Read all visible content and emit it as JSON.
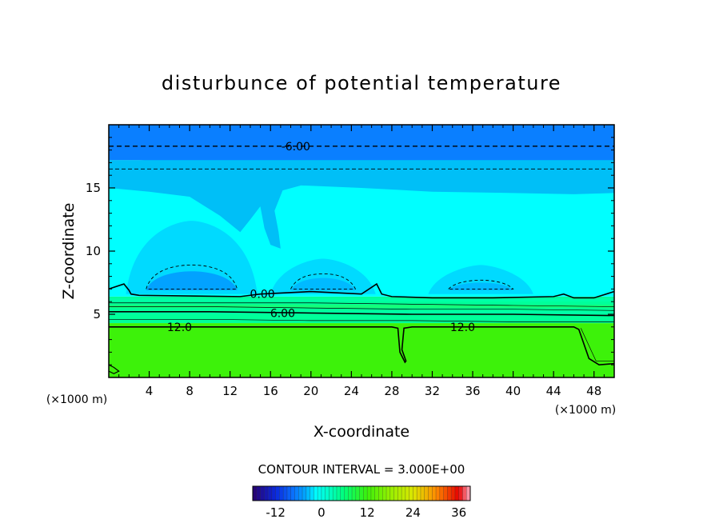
{
  "chart_data": {
    "type": "heatmap",
    "title": "disturbunce of potential temperature",
    "xlabel": "X-coordinate",
    "ylabel": "Z-coordinate",
    "x_unit_left": "(×1000 m)",
    "x_unit_right": "(×1000 m)",
    "xlim": [
      0,
      50
    ],
    "ylim": [
      0,
      20
    ],
    "x_ticks": [
      "4",
      "8",
      "12",
      "16",
      "20",
      "24",
      "28",
      "32",
      "36",
      "40",
      "44",
      "48"
    ],
    "y_ticks": [
      "5",
      "10",
      "15"
    ],
    "contour_interval_text": "CONTOUR INTERVAL = 3.000E+00",
    "contour_labels": [
      {
        "text": "-6.00",
        "x": 18.5,
        "z": 18.3
      },
      {
        "text": "0.00",
        "x": 15.2,
        "z": 6.6
      },
      {
        "text": "6.00",
        "x": 17.2,
        "z": 5.1
      },
      {
        "text": "12.0",
        "x": 7.0,
        "z": 4.0
      },
      {
        "text": "12.0",
        "x": 35.0,
        "z": 4.0
      }
    ],
    "colorbar": {
      "min": -18,
      "max": 39,
      "ticks": [
        "-12",
        "0",
        "12",
        "24",
        "36"
      ],
      "tick_values": [
        -12,
        0,
        12,
        24,
        36
      ]
    },
    "field_bands": [
      {
        "name": "lower layer",
        "z_range": [
          0,
          4
        ],
        "value": 13.5
      },
      {
        "name": "transition",
        "z_range": [
          4,
          6.4
        ],
        "value": 6
      },
      {
        "name": "middle layer",
        "z_range": [
          6.4,
          15
        ],
        "value": -1.5
      },
      {
        "name": "upper layer",
        "z_range": [
          15,
          17
        ],
        "value": -3.5
      },
      {
        "name": "top layer",
        "z_range": [
          17,
          20
        ],
        "value": -7
      }
    ],
    "cold_pockets": [
      {
        "x_center": 8.2,
        "z_top": 8.9,
        "x_half_width": 4.5,
        "value": -4.5
      },
      {
        "x_center": 21.2,
        "z_top": 8.2,
        "x_half_width": 3.2,
        "value": -3.5
      },
      {
        "x_center": 36.8,
        "z_top": 7.7,
        "x_half_width": 3.2,
        "value": -3.5
      }
    ],
    "colors": {
      "top": "#0a7fff",
      "upper": "#00bff7",
      "middle": "#00ffff",
      "cold_pocket": "#00a8ff",
      "transition": "#00ff9a",
      "lower": "#3df20a"
    }
  }
}
